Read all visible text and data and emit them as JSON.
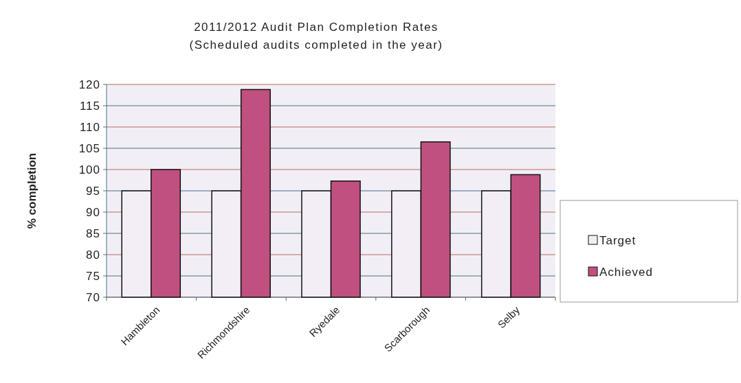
{
  "chart_data": {
    "type": "bar",
    "title": "2011/2012 Audit Plan Completion Rates",
    "subtitle": "(Scheduled audits completed in the year)",
    "ylabel": "% completion",
    "categories": [
      "Hambleton",
      "Richmondshire",
      "Ryedale",
      "Scarborough",
      "Selby"
    ],
    "series": [
      {
        "name": "Target",
        "color": "#f3eef6",
        "values": [
          95,
          95,
          95,
          95,
          95
        ]
      },
      {
        "name": "Achieved",
        "color": "#c0507f",
        "values": [
          100,
          118.8,
          97.3,
          106.5,
          98.8
        ]
      }
    ],
    "ylim": [
      70,
      120
    ],
    "yticks": [
      70,
      75,
      80,
      85,
      90,
      95,
      100,
      105,
      110,
      115,
      120
    ],
    "grid": "y",
    "legend": "right"
  }
}
